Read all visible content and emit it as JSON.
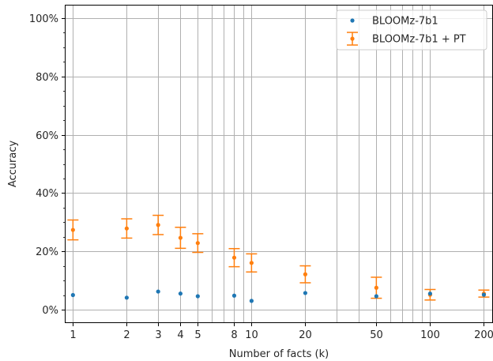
{
  "chart_data": {
    "type": "scatter",
    "xlabel": "Number of facts (k)",
    "ylabel": "Accuracy",
    "xscale": "log",
    "xlim": [
      0.9,
      225
    ],
    "ylim": [
      -0.045,
      1.045
    ],
    "grid": true,
    "legend_placement": "top-right",
    "x_ticks": [
      1,
      2,
      3,
      4,
      5,
      8,
      10,
      20,
      50,
      100,
      200
    ],
    "x_tick_labels": [
      "1",
      "2",
      "3",
      "4",
      "5",
      "8",
      "10",
      "20",
      "50",
      "100",
      "200"
    ],
    "y_ticks": [
      0,
      0.2,
      0.4,
      0.6,
      0.8,
      1.0
    ],
    "y_tick_labels": [
      "0%",
      "20%",
      "40%",
      "60%",
      "80%",
      "100%"
    ],
    "series": [
      {
        "name": "BLOOMz-7b1",
        "color": "#1f77b4",
        "marker": "dot",
        "x": [
          1,
          2,
          3,
          4,
          5,
          8,
          10,
          20,
          50,
          100,
          200
        ],
        "y": [
          0.051,
          0.042,
          0.063,
          0.056,
          0.047,
          0.049,
          0.031,
          0.058,
          0.047,
          0.056,
          0.052
        ]
      },
      {
        "name": "BLOOMz-7b1 + PT",
        "color": "#ff7f0e",
        "marker": "errorbar",
        "x": [
          1,
          2,
          3,
          4,
          5,
          8,
          10,
          20,
          50,
          100,
          200
        ],
        "y": [
          0.274,
          0.279,
          0.291,
          0.247,
          0.229,
          0.179,
          0.161,
          0.122,
          0.076,
          0.052,
          0.056
        ],
        "err": [
          0.034,
          0.033,
          0.033,
          0.036,
          0.032,
          0.031,
          0.031,
          0.029,
          0.036,
          0.018,
          0.012
        ]
      }
    ]
  }
}
